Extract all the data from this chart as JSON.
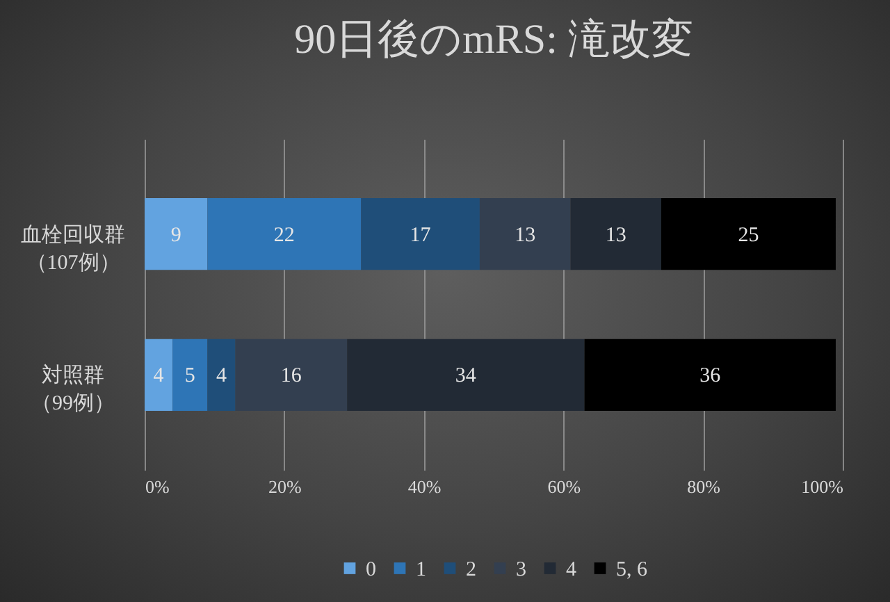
{
  "chart_data": {
    "type": "bar",
    "title": "90日後のmRS: 滝改変",
    "orientation": "horizontal",
    "stacked": true,
    "categories": [
      "血栓回収群（107例）",
      "対照群（99例）"
    ],
    "series": [
      {
        "name": "0",
        "color": "#62a3e0",
        "values": [
          9,
          4
        ]
      },
      {
        "name": "1",
        "color": "#2e75b6",
        "values": [
          22,
          5
        ]
      },
      {
        "name": "2",
        "color": "#1f4e79",
        "values": [
          17,
          4
        ]
      },
      {
        "name": "3",
        "color": "#333f50",
        "values": [
          13,
          16
        ]
      },
      {
        "name": "4",
        "color": "#222a35",
        "values": [
          13,
          34
        ]
      },
      {
        "name": "5, 6",
        "color": "#000000",
        "values": [
          25,
          36
        ]
      }
    ],
    "xlim": [
      0,
      100
    ],
    "xticks": [
      {
        "value": 0,
        "label": "0%"
      },
      {
        "value": 20,
        "label": "20%"
      },
      {
        "value": 40,
        "label": "40%"
      },
      {
        "value": 60,
        "label": "60%"
      },
      {
        "value": 80,
        "label": "80%"
      },
      {
        "value": 100,
        "label": "100%"
      }
    ],
    "grid": "x",
    "legend": "bottom",
    "data_labels": true
  }
}
